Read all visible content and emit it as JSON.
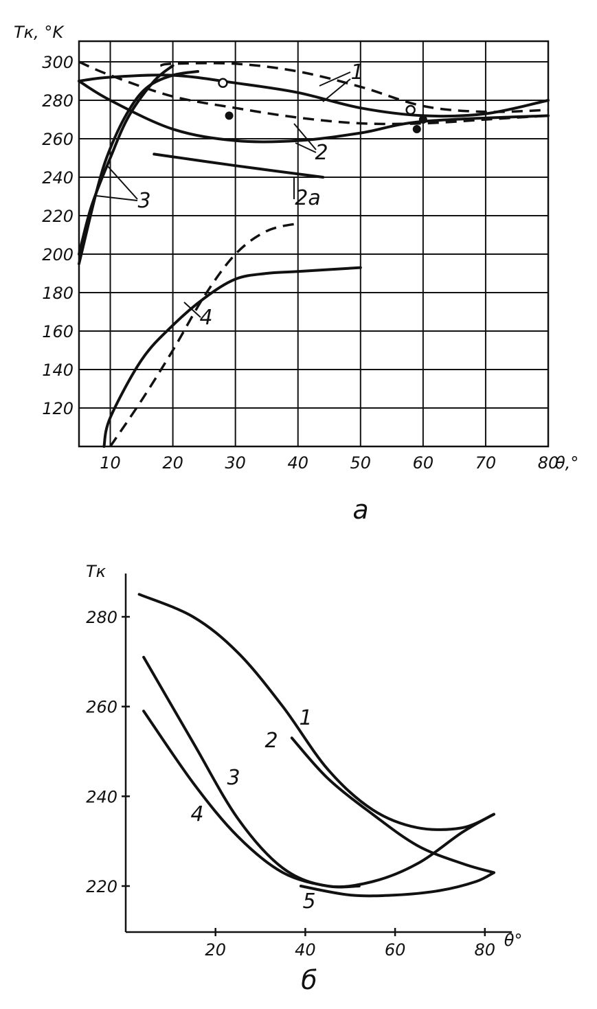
{
  "chart_data": [
    {
      "type": "line",
      "caption": "а",
      "ylabel": "Tк, °K",
      "xlabel": "θ,°",
      "xlim": [
        5,
        80
      ],
      "ylim": [
        100,
        300
      ],
      "xticks": [
        10,
        20,
        30,
        40,
        50,
        60,
        70,
        80
      ],
      "yticks": [
        120,
        140,
        160,
        180,
        200,
        220,
        240,
        260,
        280,
        300
      ],
      "grid": true,
      "series": [
        {
          "name": "1",
          "style": "solid",
          "x": [
            5,
            10,
            20,
            30,
            40,
            50,
            60,
            70,
            80
          ],
          "y": [
            290,
            292,
            293,
            289,
            284,
            276,
            272,
            273,
            280
          ]
        },
        {
          "name": "1",
          "style": "dashed",
          "x": [
            18,
            20,
            30,
            40,
            50,
            60,
            70,
            80
          ],
          "y": [
            298,
            299,
            299,
            295,
            287,
            277,
            274,
            275
          ]
        },
        {
          "name": "2",
          "style": "solid",
          "x": [
            5,
            10,
            20,
            30,
            40,
            50,
            60,
            80
          ],
          "y": [
            290,
            280,
            265,
            259,
            259,
            263,
            269,
            272
          ]
        },
        {
          "name": "2",
          "style": "dashed",
          "x": [
            5,
            10,
            20,
            30,
            40,
            50,
            60,
            70,
            80
          ],
          "y": [
            300,
            293,
            282,
            276,
            271,
            268,
            268,
            270,
            272
          ]
        },
        {
          "name": "2a",
          "style": "solid",
          "x": [
            17,
            30,
            44
          ],
          "y": [
            252,
            246,
            240
          ]
        },
        {
          "name": "3",
          "style": "solid",
          "x": [
            5,
            8,
            10,
            13,
            16,
            20,
            24
          ],
          "y": [
            195,
            235,
            255,
            275,
            287,
            293,
            295
          ]
        },
        {
          "name": "3",
          "style": "solid",
          "x": [
            5,
            7,
            10,
            13,
            17,
            20
          ],
          "y": [
            200,
            225,
            250,
            272,
            290,
            298
          ]
        },
        {
          "name": "4",
          "style": "solid",
          "x": [
            9,
            10,
            15,
            20,
            25,
            30,
            35,
            40,
            50
          ],
          "y": [
            100,
            115,
            145,
            163,
            177,
            187,
            190,
            191,
            193
          ]
        },
        {
          "name": "4",
          "style": "dashed",
          "x": [
            10,
            15,
            20,
            25,
            30,
            35,
            40
          ],
          "y": [
            100,
            124,
            150,
            178,
            200,
            212,
            216
          ]
        }
      ],
      "labels": [
        "1",
        "2",
        "2a",
        "3",
        "4"
      ]
    },
    {
      "type": "line",
      "caption": "б",
      "ylabel": "Tк",
      "xlabel": "θ°",
      "xlim": [
        0,
        86
      ],
      "ylim": [
        210,
        290
      ],
      "xticks": [
        20,
        40,
        60,
        80
      ],
      "yticks": [
        220,
        240,
        260,
        280
      ],
      "grid": false,
      "series": [
        {
          "name": "1",
          "x": [
            3,
            15,
            25,
            35,
            45,
            55,
            65,
            75,
            82
          ],
          "y": [
            285,
            280,
            272,
            260,
            246,
            237,
            233,
            233,
            236
          ]
        },
        {
          "name": "2",
          "x": [
            37,
            45,
            55,
            65,
            75,
            82
          ],
          "y": [
            253,
            244,
            236,
            229,
            225,
            223
          ]
        },
        {
          "name": "3",
          "x": [
            4,
            15,
            25,
            35,
            45,
            55,
            65,
            75,
            82
          ],
          "y": [
            271,
            252,
            235,
            224,
            220,
            221,
            225,
            232,
            236
          ]
        },
        {
          "name": "4",
          "x": [
            4,
            15,
            25,
            35,
            45,
            52
          ],
          "y": [
            259,
            243,
            231,
            223,
            220,
            220
          ]
        },
        {
          "name": "5",
          "x": [
            39,
            50,
            60,
            70,
            78,
            82
          ],
          "y": [
            220,
            218,
            218,
            219,
            221,
            223
          ]
        }
      ],
      "labels": [
        "1",
        "2",
        "3",
        "4",
        "5"
      ]
    }
  ]
}
